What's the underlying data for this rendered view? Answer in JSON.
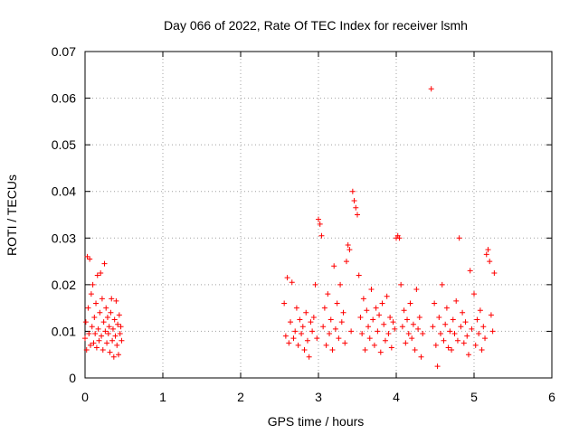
{
  "chart_data": {
    "type": "scatter",
    "title": "Day 066 of 2022, Rate Of TEC Index for receiver lsmh",
    "xlabel": "GPS time / hours",
    "ylabel": "ROTI / TECUs",
    "xlim": [
      0,
      6
    ],
    "ylim": [
      0,
      0.07
    ],
    "x_ticks": [
      "0",
      "1",
      "2",
      "3",
      "4",
      "5",
      "6"
    ],
    "y_ticks": [
      "0",
      "0.01",
      "0.02",
      "0.03",
      "0.04",
      "0.05",
      "0.06",
      "0.07"
    ],
    "grid": true,
    "marker": "+",
    "color": "#ff0000",
    "series": [
      {
        "points": [
          [
            0.0,
            0.0085
          ],
          [
            0.01,
            0.012
          ],
          [
            0.02,
            0.006
          ],
          [
            0.03,
            0.026
          ],
          [
            0.04,
            0.015
          ],
          [
            0.05,
            0.0095
          ],
          [
            0.06,
            0.0255
          ],
          [
            0.07,
            0.007
          ],
          [
            0.08,
            0.018
          ],
          [
            0.09,
            0.011
          ],
          [
            0.1,
            0.02
          ],
          [
            0.11,
            0.0075
          ],
          [
            0.12,
            0.013
          ],
          [
            0.13,
            0.0095
          ],
          [
            0.14,
            0.016
          ],
          [
            0.15,
            0.0065
          ],
          [
            0.16,
            0.022
          ],
          [
            0.17,
            0.0105
          ],
          [
            0.18,
            0.008
          ],
          [
            0.19,
            0.014
          ],
          [
            0.2,
            0.0225
          ],
          [
            0.21,
            0.009
          ],
          [
            0.22,
            0.017
          ],
          [
            0.23,
            0.006
          ],
          [
            0.24,
            0.012
          ],
          [
            0.25,
            0.0245
          ],
          [
            0.26,
            0.01
          ],
          [
            0.27,
            0.015
          ],
          [
            0.28,
            0.0075
          ],
          [
            0.29,
            0.013
          ],
          [
            0.3,
            0.0095
          ],
          [
            0.31,
            0.011
          ],
          [
            0.32,
            0.0055
          ],
          [
            0.33,
            0.014
          ],
          [
            0.34,
            0.017
          ],
          [
            0.35,
            0.008
          ],
          [
            0.36,
            0.0105
          ],
          [
            0.37,
            0.0045
          ],
          [
            0.38,
            0.0125
          ],
          [
            0.39,
            0.009
          ],
          [
            0.4,
            0.0165
          ],
          [
            0.41,
            0.007
          ],
          [
            0.42,
            0.0115
          ],
          [
            0.43,
            0.005
          ],
          [
            0.44,
            0.0135
          ],
          [
            0.45,
            0.0095
          ],
          [
            0.46,
            0.011
          ],
          [
            0.47,
            0.008
          ],
          [
            2.56,
            0.016
          ],
          [
            2.58,
            0.009
          ],
          [
            2.6,
            0.0215
          ],
          [
            2.62,
            0.0075
          ],
          [
            2.64,
            0.012
          ],
          [
            2.66,
            0.0205
          ],
          [
            2.68,
            0.0085
          ],
          [
            2.7,
            0.01
          ],
          [
            2.72,
            0.015
          ],
          [
            2.74,
            0.007
          ],
          [
            2.76,
            0.0125
          ],
          [
            2.78,
            0.0095
          ],
          [
            2.8,
            0.011
          ],
          [
            2.82,
            0.006
          ],
          [
            2.84,
            0.014
          ],
          [
            2.86,
            0.008
          ],
          [
            2.88,
            0.0045
          ],
          [
            2.9,
            0.012
          ],
          [
            2.92,
            0.01
          ],
          [
            2.94,
            0.013
          ],
          [
            2.96,
            0.02
          ],
          [
            2.98,
            0.0085
          ],
          [
            3.0,
            0.034
          ],
          [
            3.02,
            0.033
          ],
          [
            3.04,
            0.0305
          ],
          [
            3.06,
            0.011
          ],
          [
            3.08,
            0.015
          ],
          [
            3.1,
            0.007
          ],
          [
            3.12,
            0.018
          ],
          [
            3.14,
            0.0095
          ],
          [
            3.16,
            0.0125
          ],
          [
            3.18,
            0.006
          ],
          [
            3.2,
            0.024
          ],
          [
            3.22,
            0.0105
          ],
          [
            3.24,
            0.016
          ],
          [
            3.26,
            0.0085
          ],
          [
            3.28,
            0.02
          ],
          [
            3.3,
            0.012
          ],
          [
            3.32,
            0.014
          ],
          [
            3.34,
            0.0075
          ],
          [
            3.36,
            0.025
          ],
          [
            3.38,
            0.0285
          ],
          [
            3.4,
            0.0275
          ],
          [
            3.42,
            0.01
          ],
          [
            3.44,
            0.04
          ],
          [
            3.46,
            0.038
          ],
          [
            3.48,
            0.0365
          ],
          [
            3.5,
            0.035
          ],
          [
            3.52,
            0.022
          ],
          [
            3.54,
            0.013
          ],
          [
            3.56,
            0.0095
          ],
          [
            3.58,
            0.017
          ],
          [
            3.6,
            0.006
          ],
          [
            3.62,
            0.0145
          ],
          [
            3.64,
            0.011
          ],
          [
            3.66,
            0.0085
          ],
          [
            3.68,
            0.019
          ],
          [
            3.7,
            0.0125
          ],
          [
            3.72,
            0.007
          ],
          [
            3.74,
            0.015
          ],
          [
            3.76,
            0.01
          ],
          [
            3.78,
            0.0135
          ],
          [
            3.8,
            0.0055
          ],
          [
            3.82,
            0.016
          ],
          [
            3.84,
            0.0115
          ],
          [
            3.86,
            0.008
          ],
          [
            3.88,
            0.0175
          ],
          [
            3.9,
            0.0095
          ],
          [
            3.92,
            0.013
          ],
          [
            3.94,
            0.0065
          ],
          [
            3.96,
            0.012
          ],
          [
            3.98,
            0.0105
          ],
          [
            4.0,
            0.03
          ],
          [
            4.02,
            0.0305
          ],
          [
            4.04,
            0.03
          ],
          [
            4.06,
            0.02
          ],
          [
            4.08,
            0.011
          ],
          [
            4.1,
            0.0145
          ],
          [
            4.12,
            0.0075
          ],
          [
            4.14,
            0.0125
          ],
          [
            4.16,
            0.0095
          ],
          [
            4.18,
            0.016
          ],
          [
            4.2,
            0.0085
          ],
          [
            4.22,
            0.0115
          ],
          [
            4.24,
            0.006
          ],
          [
            4.26,
            0.019
          ],
          [
            4.28,
            0.0105
          ],
          [
            4.3,
            0.013
          ],
          [
            4.32,
            0.0045
          ],
          [
            4.34,
            0.0095
          ],
          [
            4.45,
            0.062
          ],
          [
            4.47,
            0.011
          ],
          [
            4.49,
            0.016
          ],
          [
            4.51,
            0.007
          ],
          [
            4.53,
            0.0025
          ],
          [
            4.55,
            0.013
          ],
          [
            4.57,
            0.0095
          ],
          [
            4.59,
            0.02
          ],
          [
            4.61,
            0.008
          ],
          [
            4.63,
            0.0115
          ],
          [
            4.65,
            0.015
          ],
          [
            4.67,
            0.0065
          ],
          [
            4.69,
            0.01
          ],
          [
            4.71,
            0.006
          ],
          [
            4.73,
            0.0125
          ],
          [
            4.75,
            0.0095
          ],
          [
            4.77,
            0.0165
          ],
          [
            4.79,
            0.008
          ],
          [
            4.81,
            0.03
          ],
          [
            4.83,
            0.011
          ],
          [
            4.85,
            0.014
          ],
          [
            4.87,
            0.0075
          ],
          [
            4.89,
            0.012
          ],
          [
            4.91,
            0.009
          ],
          [
            4.93,
            0.005
          ],
          [
            4.95,
            0.023
          ],
          [
            4.97,
            0.0105
          ],
          [
            5.0,
            0.018
          ],
          [
            5.02,
            0.007
          ],
          [
            5.04,
            0.0125
          ],
          [
            5.06,
            0.0095
          ],
          [
            5.08,
            0.0145
          ],
          [
            5.1,
            0.006
          ],
          [
            5.12,
            0.011
          ],
          [
            5.14,
            0.0085
          ],
          [
            5.16,
            0.0265
          ],
          [
            5.18,
            0.0275
          ],
          [
            5.2,
            0.025
          ],
          [
            5.22,
            0.0135
          ],
          [
            5.24,
            0.01
          ],
          [
            5.26,
            0.0225
          ]
        ]
      }
    ]
  }
}
